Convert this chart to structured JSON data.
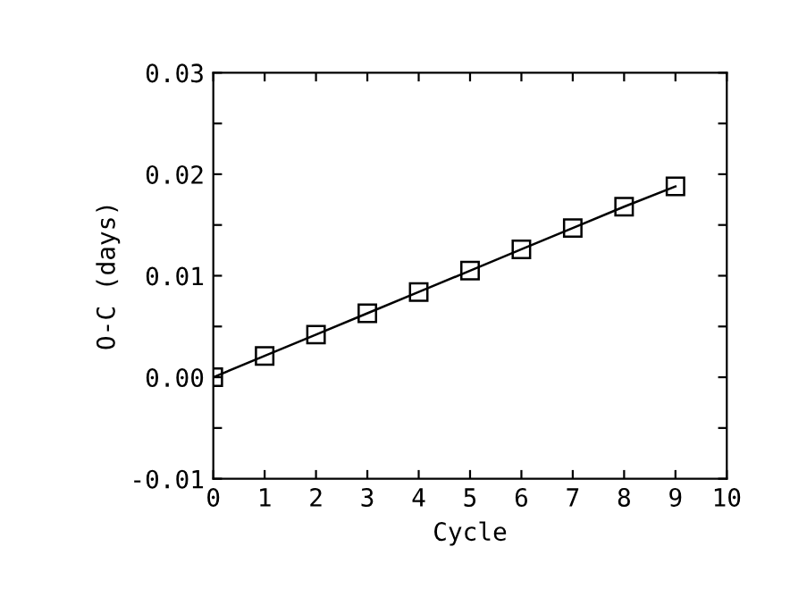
{
  "chart_data": {
    "type": "line",
    "xlabel": "Cycle",
    "ylabel": "O-C (days)",
    "x": [
      0,
      1,
      2,
      3,
      4,
      5,
      6,
      7,
      8,
      9
    ],
    "series": [
      {
        "color": "#000000",
        "values": [
          0.0,
          0.0021,
          0.0042,
          0.0063,
          0.0084,
          0.0105,
          0.0126,
          0.0147,
          0.0168,
          0.0188
        ]
      }
    ],
    "marker": "square",
    "line_style": "solid",
    "grid": false,
    "legend": false,
    "xlim": [
      0,
      10
    ],
    "xticks": [
      {
        "value": 0,
        "label": "0"
      },
      1,
      2,
      3,
      4,
      5,
      6,
      7,
      8,
      9,
      10
    ],
    "ylim": [
      -0.01,
      0.03
    ],
    "yticks": [
      {
        "value": -0.01,
        "label": "-0.01"
      },
      {
        "value": -0.005,
        "label": null
      },
      {
        "value": 0.0,
        "label": "0.00"
      },
      {
        "value": 0.005,
        "label": null
      },
      {
        "value": 0.01,
        "label": "0.01"
      },
      {
        "value": 0.015,
        "label": null
      },
      {
        "value": 0.02,
        "label": "0.02"
      },
      {
        "value": 0.025,
        "label": null
      },
      {
        "value": 0.03,
        "label": "0.03"
      }
    ]
  }
}
